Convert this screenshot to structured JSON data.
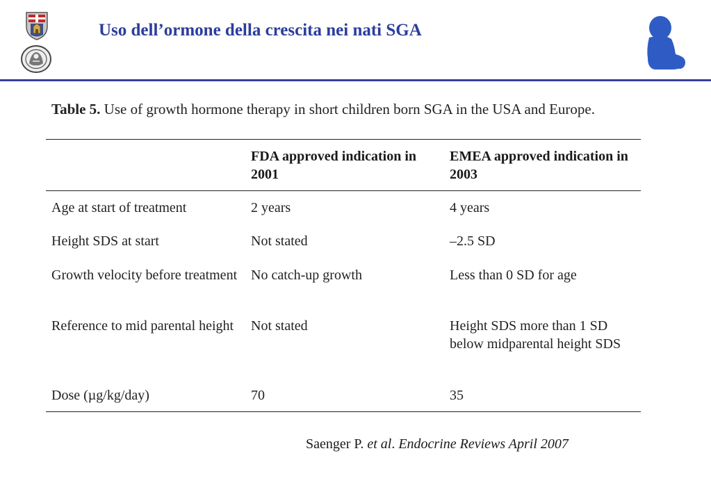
{
  "header": {
    "title": "Uso dell’ormone della crescita nei nati SGA"
  },
  "table": {
    "caption_label": "Table 5.",
    "caption_text": "Use of growth hormone therapy in short children born SGA in the USA and Europe.",
    "columns": [
      "",
      "FDA approved indication in 2001",
      "EMEA approved indication in 2003"
    ],
    "rows": [
      [
        "Age at start of treatment",
        "2 years",
        "4 years"
      ],
      [
        "Height SDS at start",
        "Not stated",
        "–2.5 SD"
      ],
      [
        "Growth velocity before treatment",
        "No catch-up growth",
        "Less than 0 SD for age"
      ],
      [
        "Reference to mid parental height",
        "Not stated",
        "Height SDS more than 1 SD below midparental height SDS"
      ],
      [
        "Dose (µg/kg/day)",
        "70",
        "35"
      ]
    ]
  },
  "citation": {
    "authors": "Saenger P.",
    "etal": "et al",
    "source": "Endocrine Reviews April 2007"
  }
}
